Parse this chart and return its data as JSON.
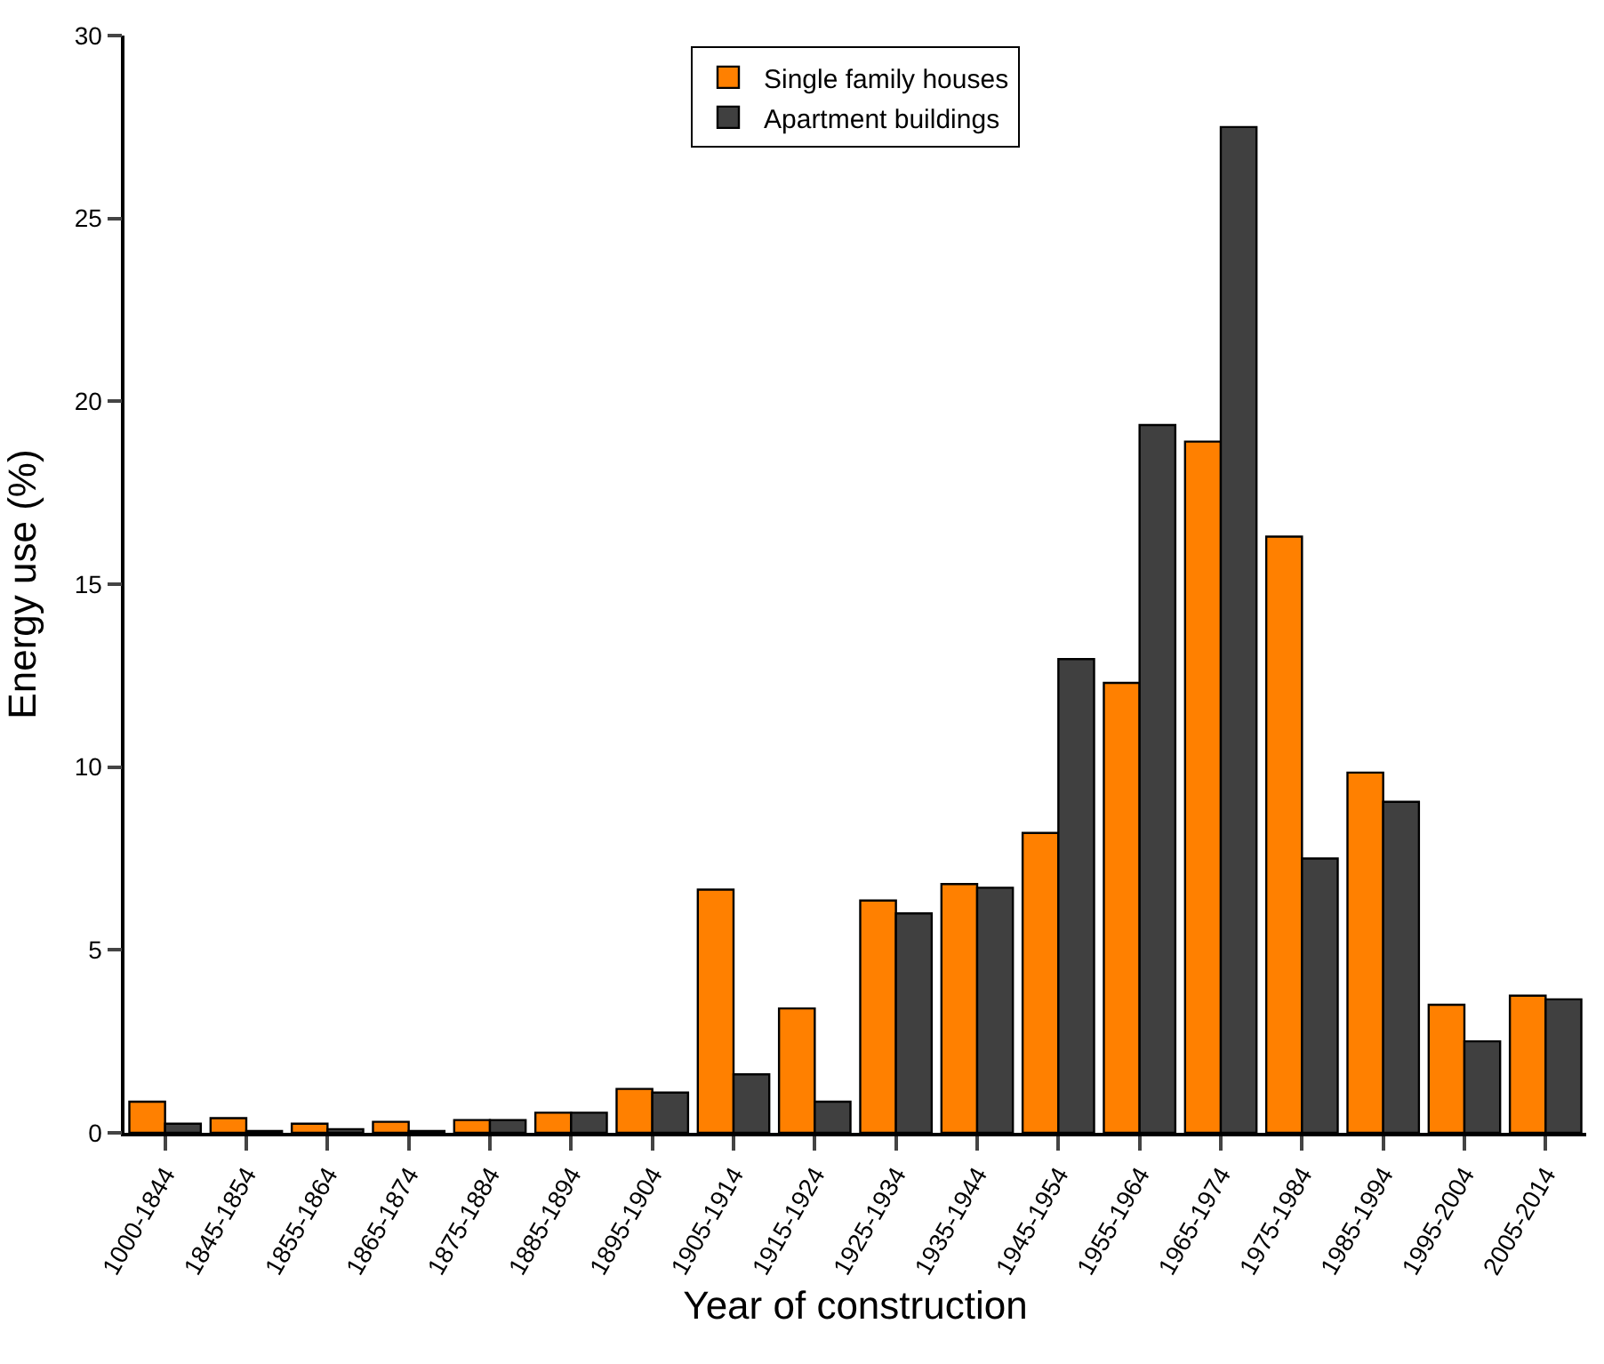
{
  "chart_data": {
    "type": "bar",
    "xlabel": "Year of construction",
    "ylabel": "Energy use (%)",
    "categories": [
      "1000-1844",
      "1845-1854",
      "1855-1864",
      "1865-1874",
      "1875-1884",
      "1885-1894",
      "1895-1904",
      "1905-1914",
      "1915-1924",
      "1925-1934",
      "1935-1944",
      "1945-1954",
      "1955-1964",
      "1965-1974",
      "1975-1984",
      "1985-1994",
      "1995-2004",
      "2005-2014"
    ],
    "series": [
      {
        "name": "Single family houses",
        "color": "#ff8000",
        "values": [
          0.85,
          0.4,
          0.25,
          0.3,
          0.35,
          0.55,
          1.2,
          6.65,
          3.4,
          6.35,
          6.8,
          8.2,
          12.3,
          18.9,
          16.3,
          9.85,
          3.5,
          3.75
        ]
      },
      {
        "name": "Apartment buildings",
        "color": "#404040",
        "values": [
          0.25,
          0.05,
          0.1,
          0.05,
          0.35,
          0.55,
          1.1,
          1.6,
          0.85,
          6.0,
          6.7,
          12.95,
          19.35,
          27.5,
          7.5,
          9.05,
          2.5,
          3.65
        ]
      }
    ],
    "ylim": [
      0,
      30
    ],
    "yticks": [
      0,
      5,
      10,
      15,
      20,
      25,
      30
    ],
    "grid": false,
    "legend": "top"
  }
}
